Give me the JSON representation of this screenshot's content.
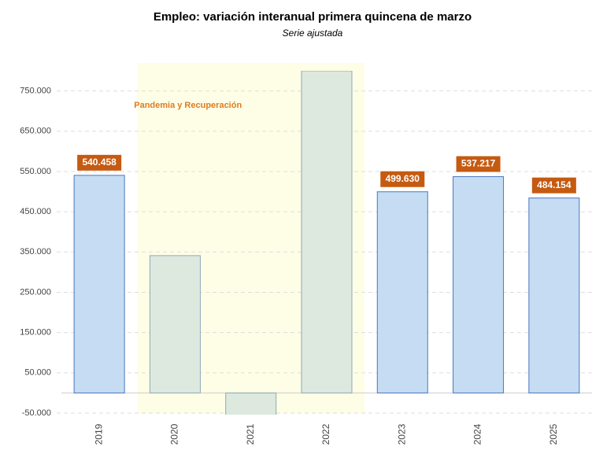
{
  "chart_data": {
    "type": "bar",
    "title": "Empleo: variación interanual primera quincena de marzo",
    "subtitle": "Serie ajustada",
    "annotation": "Pandemia y Recuperación",
    "categories": [
      "2019",
      "2020",
      "2021",
      "2022",
      "2023",
      "2024",
      "2025"
    ],
    "values": [
      540458,
      341000,
      -60000,
      800000,
      499630,
      537217,
      484154
    ],
    "value_labels": [
      "540.458",
      null,
      null,
      null,
      "499.630",
      "537.217",
      "484.154"
    ],
    "colors": [
      "#c5dcf2",
      "#dde9de",
      "#dde9de",
      "#dde9de",
      "#c5dcf2",
      "#c5dcf2",
      "#c5dcf2"
    ],
    "highlight_range": [
      1,
      3
    ],
    "ylim": [
      -50000,
      800000
    ],
    "yticks": [
      {
        "value": -50000,
        "label": "-50.000"
      },
      {
        "value": 50000,
        "label": "50.000"
      },
      {
        "value": 150000,
        "label": "150.000"
      },
      {
        "value": 250000,
        "label": "250.000"
      },
      {
        "value": 350000,
        "label": "350.000"
      },
      {
        "value": 450000,
        "label": "450.000"
      },
      {
        "value": 550000,
        "label": "550.000"
      },
      {
        "value": 650000,
        "label": "650.000"
      },
      {
        "value": 750000,
        "label": "750.000"
      }
    ],
    "grid": true
  }
}
